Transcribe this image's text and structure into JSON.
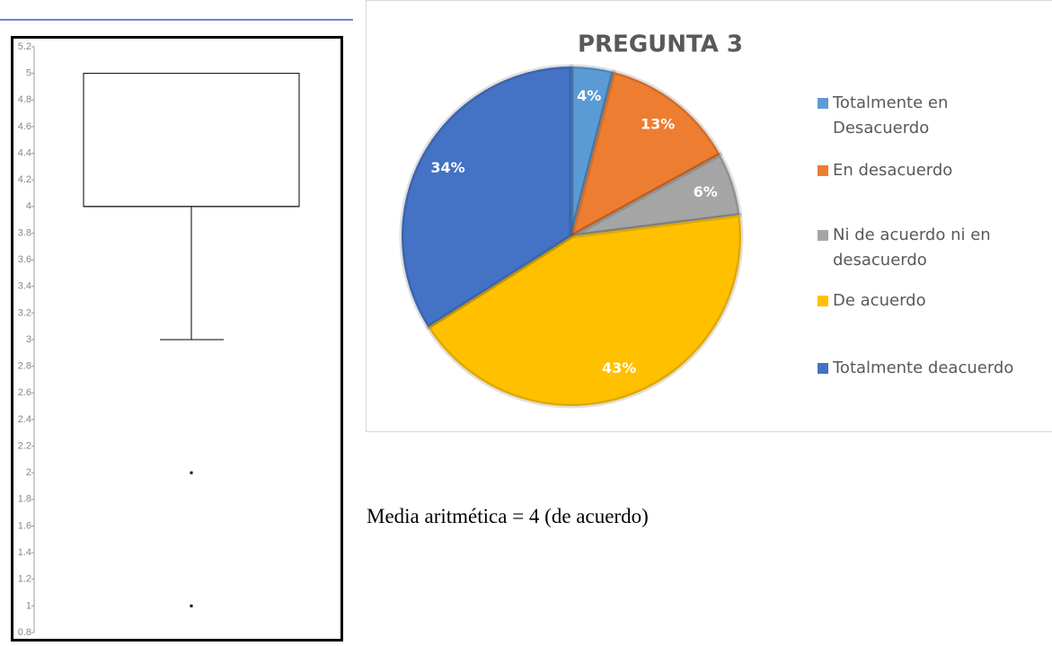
{
  "chart_data": [
    {
      "type": "box",
      "ylim": [
        0.8,
        5.2
      ],
      "yticks": [
        0.8,
        1,
        1.2,
        1.4,
        1.6,
        1.8,
        2,
        2.2,
        2.4,
        2.6,
        2.8,
        3,
        3.2,
        3.4,
        3.6,
        3.8,
        4,
        4.2,
        4.4,
        4.6,
        4.8,
        5,
        5.2
      ],
      "q1": 4,
      "median": 4,
      "q3": 5,
      "whisker_low": 3,
      "whisker_high": 5,
      "outliers": [
        2,
        1
      ]
    },
    {
      "type": "pie",
      "title": "PREGUNTA 3",
      "categories": [
        "Totalmente en Desacuerdo",
        "En desacuerdo",
        "Ni de acuerdo ni en desacuerdo",
        "De acuerdo",
        "Totalmente deacuerdo"
      ],
      "values": [
        4,
        13,
        6,
        43,
        34
      ],
      "value_labels": [
        "4%",
        "13%",
        "6%",
        "43%",
        "34%"
      ],
      "colors": [
        "#5b9bd5",
        "#ed7d31",
        "#a5a5a5",
        "#ffc000",
        "#4472c4"
      ],
      "legend": "right"
    }
  ],
  "caption": "Media aritmética = 4 (de acuerdo)"
}
